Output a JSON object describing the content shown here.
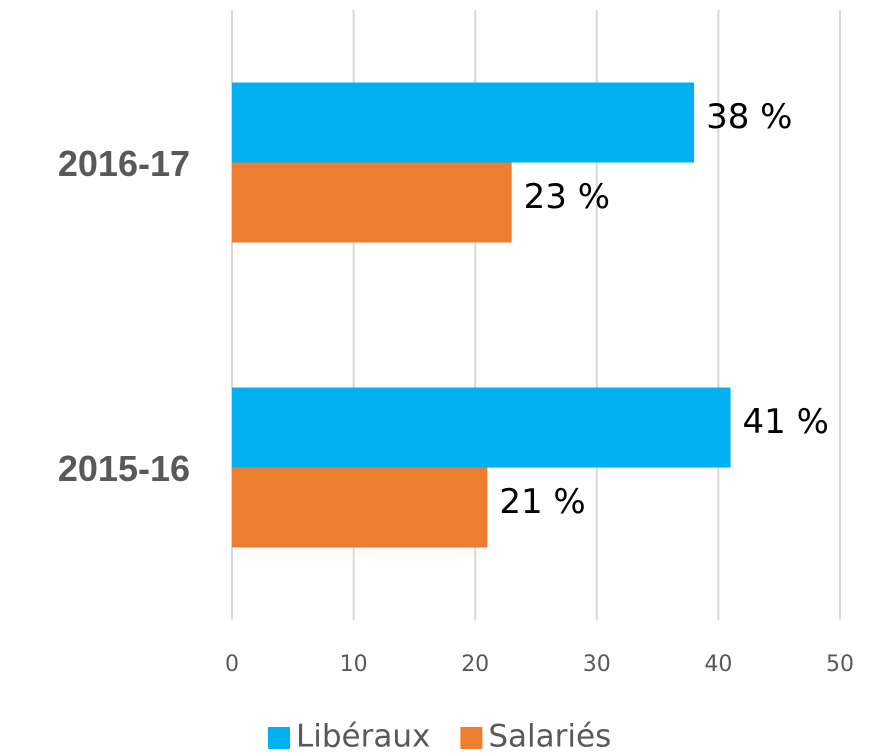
{
  "chart_data": {
    "type": "barh",
    "categories": [
      "2015-16",
      "2016-17"
    ],
    "series": [
      {
        "name": "Libéraux",
        "color": "#00b0f0",
        "values": [
          41,
          38
        ],
        "value_labels": [
          "41 %",
          "38 %"
        ]
      },
      {
        "name": "Salariés",
        "color": "#ed7d31",
        "values": [
          21,
          23
        ],
        "value_labels": [
          "21 %",
          "23 %"
        ]
      }
    ],
    "xlim": [
      0,
      50
    ],
    "xticks": [
      0,
      10,
      20,
      30,
      40,
      50
    ],
    "grid": true,
    "legend": "bottom"
  }
}
